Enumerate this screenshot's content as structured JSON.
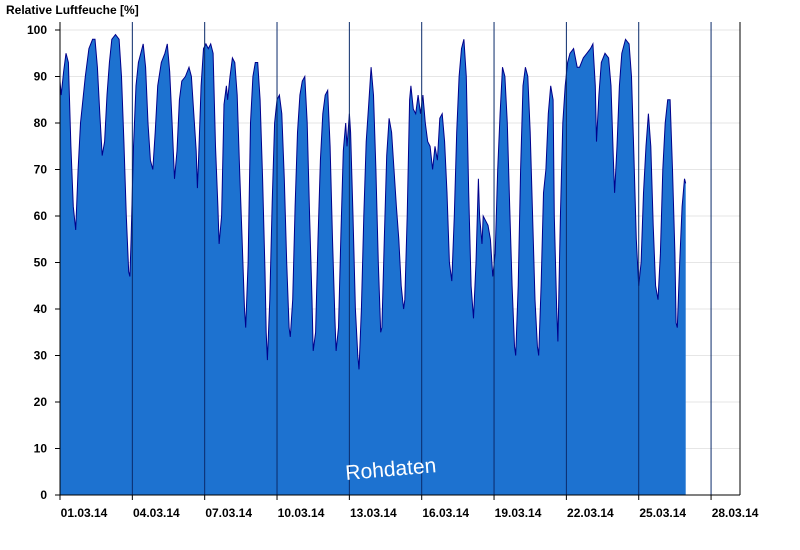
{
  "chart_data": {
    "type": "area",
    "ylabel": "Relative Luftfeuche [%]",
    "xlabel": "",
    "annotation": "Rohdaten",
    "ylim": [
      0,
      100
    ],
    "yticks": [
      0,
      10,
      20,
      30,
      40,
      50,
      60,
      70,
      80,
      90,
      100
    ],
    "xlim_days": [
      0,
      28.2
    ],
    "xtick_labels": [
      "01.03.14",
      "04.03.14",
      "07.03.14",
      "10.03.14",
      "13.03.14",
      "16.03.14",
      "19.03.14",
      "22.03.14",
      "25.03.14",
      "28.03.14"
    ],
    "xtick_days": [
      0,
      3,
      6,
      9,
      12,
      15,
      18,
      21,
      24,
      27
    ],
    "grid": true,
    "fill_color": "#1d72d0",
    "line_color": "#00008b",
    "series": [
      {
        "values": [
          [
            0,
            89
          ],
          [
            0.05,
            86
          ],
          [
            0.15,
            91
          ],
          [
            0.25,
            95
          ],
          [
            0.35,
            93
          ],
          [
            0.45,
            75
          ],
          [
            0.55,
            62
          ],
          [
            0.65,
            57
          ],
          [
            0.75,
            70
          ],
          [
            0.85,
            80
          ],
          [
            0.95,
            85
          ],
          [
            1.05,
            90
          ],
          [
            1.2,
            96
          ],
          [
            1.35,
            98
          ],
          [
            1.45,
            98
          ],
          [
            1.55,
            92
          ],
          [
            1.65,
            82
          ],
          [
            1.75,
            73
          ],
          [
            1.85,
            76
          ],
          [
            1.95,
            86
          ],
          [
            2.05,
            93
          ],
          [
            2.15,
            98
          ],
          [
            2.3,
            99
          ],
          [
            2.45,
            98
          ],
          [
            2.55,
            90
          ],
          [
            2.65,
            76
          ],
          [
            2.75,
            60
          ],
          [
            2.85,
            48
          ],
          [
            2.9,
            47
          ],
          [
            2.95,
            55
          ],
          [
            3.05,
            75
          ],
          [
            3.15,
            88
          ],
          [
            3.25,
            93
          ],
          [
            3.35,
            95
          ],
          [
            3.45,
            97
          ],
          [
            3.55,
            92
          ],
          [
            3.65,
            80
          ],
          [
            3.75,
            72
          ],
          [
            3.85,
            70
          ],
          [
            3.95,
            78
          ],
          [
            4.05,
            88
          ],
          [
            4.2,
            93
          ],
          [
            4.35,
            95
          ],
          [
            4.45,
            97
          ],
          [
            4.55,
            91
          ],
          [
            4.65,
            80
          ],
          [
            4.75,
            68
          ],
          [
            4.85,
            74
          ],
          [
            4.95,
            85
          ],
          [
            5.05,
            89
          ],
          [
            5.2,
            90
          ],
          [
            5.35,
            92
          ],
          [
            5.45,
            90
          ],
          [
            5.55,
            82
          ],
          [
            5.65,
            74
          ],
          [
            5.7,
            66
          ],
          [
            5.75,
            73
          ],
          [
            5.85,
            88
          ],
          [
            5.95,
            96
          ],
          [
            6.05,
            97
          ],
          [
            6.15,
            96
          ],
          [
            6.25,
            97
          ],
          [
            6.35,
            95
          ],
          [
            6.45,
            75
          ],
          [
            6.55,
            62
          ],
          [
            6.6,
            54
          ],
          [
            6.7,
            60
          ],
          [
            6.8,
            84
          ],
          [
            6.9,
            88
          ],
          [
            6.95,
            85
          ],
          [
            7.05,
            90
          ],
          [
            7.15,
            94
          ],
          [
            7.25,
            93
          ],
          [
            7.35,
            86
          ],
          [
            7.45,
            70
          ],
          [
            7.55,
            55
          ],
          [
            7.65,
            40
          ],
          [
            7.7,
            36
          ],
          [
            7.8,
            50
          ],
          [
            7.9,
            80
          ],
          [
            8.0,
            90
          ],
          [
            8.1,
            93
          ],
          [
            8.2,
            93
          ],
          [
            8.3,
            85
          ],
          [
            8.4,
            68
          ],
          [
            8.5,
            48
          ],
          [
            8.55,
            35
          ],
          [
            8.6,
            29
          ],
          [
            8.7,
            42
          ],
          [
            8.8,
            63
          ],
          [
            8.9,
            80
          ],
          [
            9.0,
            85
          ],
          [
            9.1,
            86
          ],
          [
            9.2,
            82
          ],
          [
            9.3,
            68
          ],
          [
            9.4,
            50
          ],
          [
            9.5,
            36
          ],
          [
            9.55,
            34
          ],
          [
            9.65,
            42
          ],
          [
            9.75,
            62
          ],
          [
            9.85,
            78
          ],
          [
            9.95,
            86
          ],
          [
            10.05,
            89
          ],
          [
            10.15,
            90
          ],
          [
            10.25,
            80
          ],
          [
            10.35,
            60
          ],
          [
            10.45,
            42
          ],
          [
            10.5,
            31
          ],
          [
            10.6,
            35
          ],
          [
            10.7,
            55
          ],
          [
            10.8,
            72
          ],
          [
            10.9,
            82
          ],
          [
            11.0,
            86
          ],
          [
            11.1,
            87
          ],
          [
            11.2,
            75
          ],
          [
            11.3,
            55
          ],
          [
            11.4,
            38
          ],
          [
            11.45,
            31
          ],
          [
            11.55,
            36
          ],
          [
            11.65,
            56
          ],
          [
            11.75,
            74
          ],
          [
            11.85,
            80
          ],
          [
            11.9,
            75
          ],
          [
            12.0,
            82
          ],
          [
            12.05,
            78
          ],
          [
            12.15,
            60
          ],
          [
            12.25,
            40
          ],
          [
            12.35,
            30
          ],
          [
            12.4,
            27
          ],
          [
            12.5,
            40
          ],
          [
            12.6,
            60
          ],
          [
            12.7,
            76
          ],
          [
            12.8,
            84
          ],
          [
            12.9,
            92
          ],
          [
            13.0,
            86
          ],
          [
            13.1,
            70
          ],
          [
            13.2,
            50
          ],
          [
            13.3,
            35
          ],
          [
            13.35,
            36
          ],
          [
            13.45,
            55
          ],
          [
            13.55,
            73
          ],
          [
            13.65,
            81
          ],
          [
            13.75,
            78
          ],
          [
            13.85,
            70
          ],
          [
            13.95,
            62
          ],
          [
            14.05,
            55
          ],
          [
            14.15,
            45
          ],
          [
            14.25,
            40
          ],
          [
            14.3,
            42
          ],
          [
            14.4,
            60
          ],
          [
            14.5,
            85
          ],
          [
            14.55,
            88
          ],
          [
            14.65,
            83
          ],
          [
            14.75,
            82
          ],
          [
            14.85,
            86
          ],
          [
            14.95,
            82
          ],
          [
            15.05,
            86
          ],
          [
            15.15,
            80
          ],
          [
            15.25,
            76
          ],
          [
            15.35,
            75
          ],
          [
            15.45,
            70
          ],
          [
            15.55,
            75
          ],
          [
            15.65,
            72
          ],
          [
            15.75,
            81
          ],
          [
            15.85,
            82
          ],
          [
            15.95,
            76
          ],
          [
            16.05,
            65
          ],
          [
            16.15,
            50
          ],
          [
            16.25,
            46
          ],
          [
            16.35,
            60
          ],
          [
            16.45,
            78
          ],
          [
            16.55,
            90
          ],
          [
            16.65,
            96
          ],
          [
            16.75,
            98
          ],
          [
            16.85,
            90
          ],
          [
            16.95,
            65
          ],
          [
            17.05,
            45
          ],
          [
            17.15,
            38
          ],
          [
            17.25,
            50
          ],
          [
            17.35,
            68
          ],
          [
            17.4,
            60
          ],
          [
            17.5,
            54
          ],
          [
            17.55,
            60
          ],
          [
            17.65,
            59
          ],
          [
            17.75,
            58
          ],
          [
            17.85,
            55
          ],
          [
            17.95,
            47
          ],
          [
            18.05,
            52
          ],
          [
            18.15,
            70
          ],
          [
            18.25,
            82
          ],
          [
            18.35,
            92
          ],
          [
            18.45,
            90
          ],
          [
            18.55,
            80
          ],
          [
            18.65,
            62
          ],
          [
            18.75,
            45
          ],
          [
            18.85,
            32
          ],
          [
            18.9,
            30
          ],
          [
            19.0,
            45
          ],
          [
            19.1,
            70
          ],
          [
            19.2,
            88
          ],
          [
            19.3,
            92
          ],
          [
            19.4,
            90
          ],
          [
            19.5,
            78
          ],
          [
            19.6,
            60
          ],
          [
            19.7,
            42
          ],
          [
            19.8,
            32
          ],
          [
            19.85,
            30
          ],
          [
            19.95,
            45
          ],
          [
            20.05,
            65
          ],
          [
            20.15,
            70
          ],
          [
            20.25,
            82
          ],
          [
            20.35,
            88
          ],
          [
            20.45,
            85
          ],
          [
            20.5,
            60
          ],
          [
            20.6,
            40
          ],
          [
            20.65,
            33
          ],
          [
            20.75,
            60
          ],
          [
            20.85,
            80
          ],
          [
            20.95,
            88
          ],
          [
            21.05,
            93
          ],
          [
            21.15,
            95
          ],
          [
            21.3,
            96
          ],
          [
            21.45,
            92
          ],
          [
            21.55,
            92
          ],
          [
            21.7,
            94
          ],
          [
            21.85,
            95
          ],
          [
            22.0,
            96
          ],
          [
            22.1,
            97
          ],
          [
            22.2,
            88
          ],
          [
            22.25,
            76
          ],
          [
            22.35,
            86
          ],
          [
            22.45,
            93
          ],
          [
            22.6,
            95
          ],
          [
            22.75,
            94
          ],
          [
            22.85,
            88
          ],
          [
            22.95,
            72
          ],
          [
            23.0,
            65
          ],
          [
            23.1,
            75
          ],
          [
            23.2,
            88
          ],
          [
            23.3,
            95
          ],
          [
            23.45,
            98
          ],
          [
            23.6,
            97
          ],
          [
            23.7,
            90
          ],
          [
            23.8,
            73
          ],
          [
            23.9,
            55
          ],
          [
            24.0,
            45
          ],
          [
            24.1,
            50
          ],
          [
            24.2,
            65
          ],
          [
            24.3,
            75
          ],
          [
            24.4,
            82
          ],
          [
            24.5,
            75
          ],
          [
            24.6,
            58
          ],
          [
            24.7,
            45
          ],
          [
            24.8,
            42
          ],
          [
            24.9,
            52
          ],
          [
            25.0,
            70
          ],
          [
            25.1,
            80
          ],
          [
            25.2,
            85
          ],
          [
            25.3,
            85
          ],
          [
            25.4,
            70
          ],
          [
            25.5,
            52
          ],
          [
            25.55,
            37
          ],
          [
            25.6,
            36
          ],
          [
            25.7,
            50
          ],
          [
            25.8,
            62
          ],
          [
            25.9,
            68
          ],
          [
            25.95,
            67
          ]
        ]
      }
    ]
  }
}
